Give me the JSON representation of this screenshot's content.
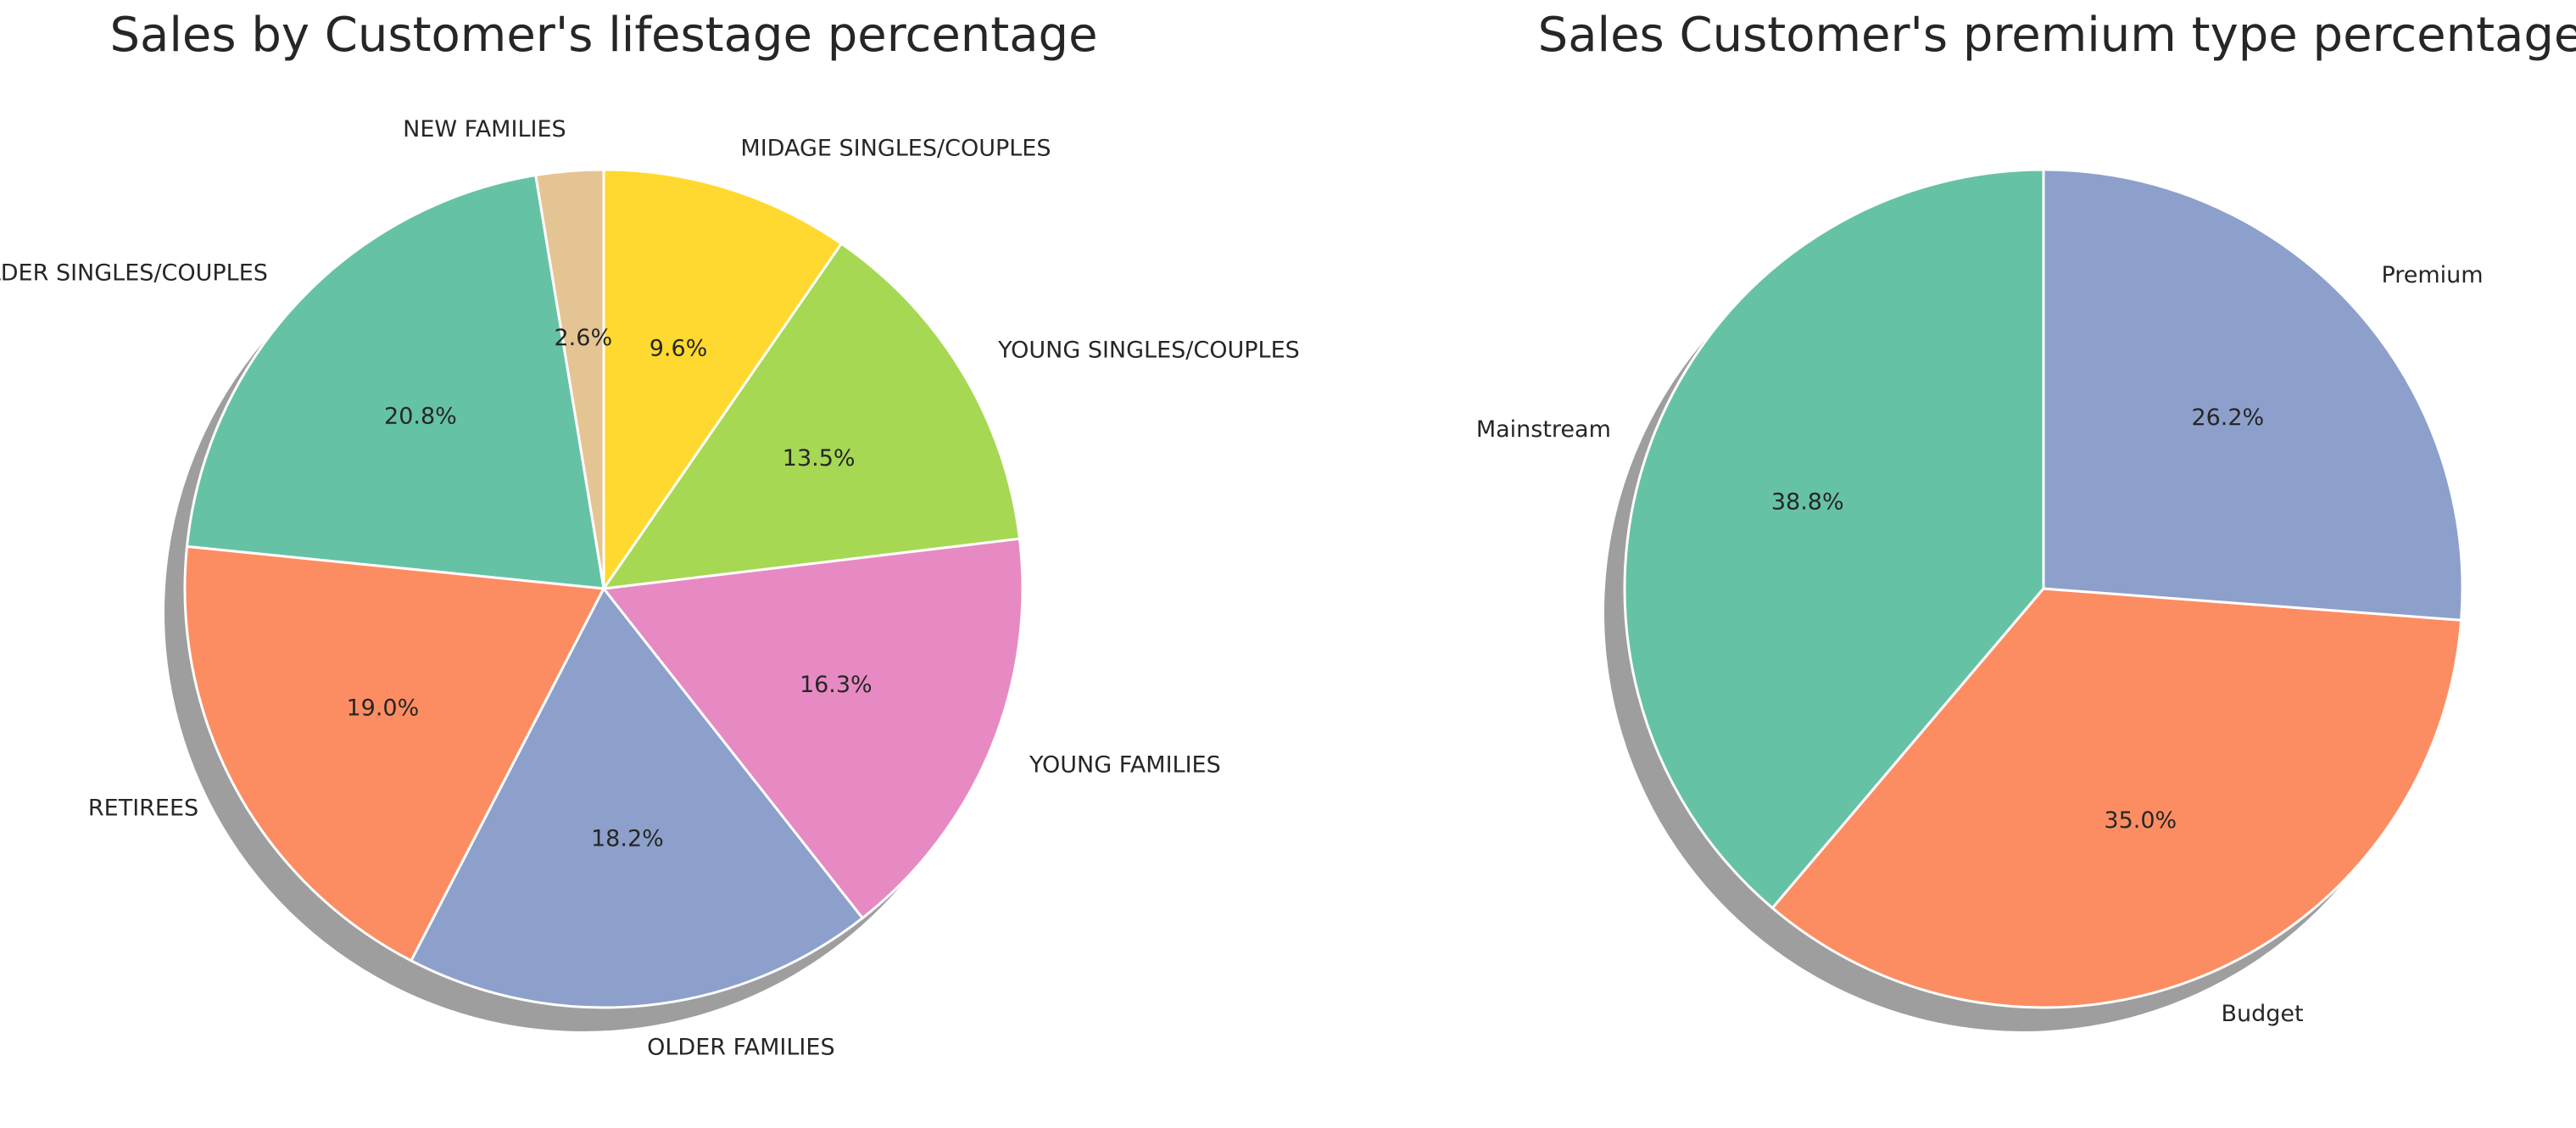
{
  "chart_data": [
    {
      "type": "pie",
      "title": "Sales by Customer's lifestage percentage",
      "start_angle_deg": 90,
      "direction": "counterclockwise",
      "shadow": true,
      "slices": [
        {
          "label": "NEW FAMILIES",
          "value": 2.6,
          "pct_text": "2.6%",
          "color": "#e5c494"
        },
        {
          "label": "OLDER SINGLES/COUPLES",
          "value": 20.8,
          "pct_text": "20.8%",
          "color": "#66c2a5"
        },
        {
          "label": "RETIREES",
          "value": 19.0,
          "pct_text": "19.0%",
          "color": "#fc8d62"
        },
        {
          "label": "OLDER FAMILIES",
          "value": 18.2,
          "pct_text": "18.2%",
          "color": "#8da0cb"
        },
        {
          "label": "YOUNG FAMILIES",
          "value": 16.3,
          "pct_text": "16.3%",
          "color": "#e78ac3"
        },
        {
          "label": "YOUNG SINGLES/COUPLES",
          "value": 13.5,
          "pct_text": "13.5%",
          "color": "#a6d854"
        },
        {
          "label": "MIDAGE SINGLES/COUPLES",
          "value": 9.6,
          "pct_text": "9.6%",
          "color": "#ffd92f"
        }
      ]
    },
    {
      "type": "pie",
      "title": "Sales Customer's premium type percentage",
      "start_angle_deg": 90,
      "direction": "counterclockwise",
      "shadow": true,
      "slices": [
        {
          "label": "Mainstream",
          "value": 38.8,
          "pct_text": "38.8%",
          "color": "#66c2a5"
        },
        {
          "label": "Budget",
          "value": 35.0,
          "pct_text": "35.0%",
          "color": "#fc8d62"
        },
        {
          "label": "Premium",
          "value": 26.2,
          "pct_text": "26.2%",
          "color": "#8da0cb"
        }
      ]
    }
  ]
}
